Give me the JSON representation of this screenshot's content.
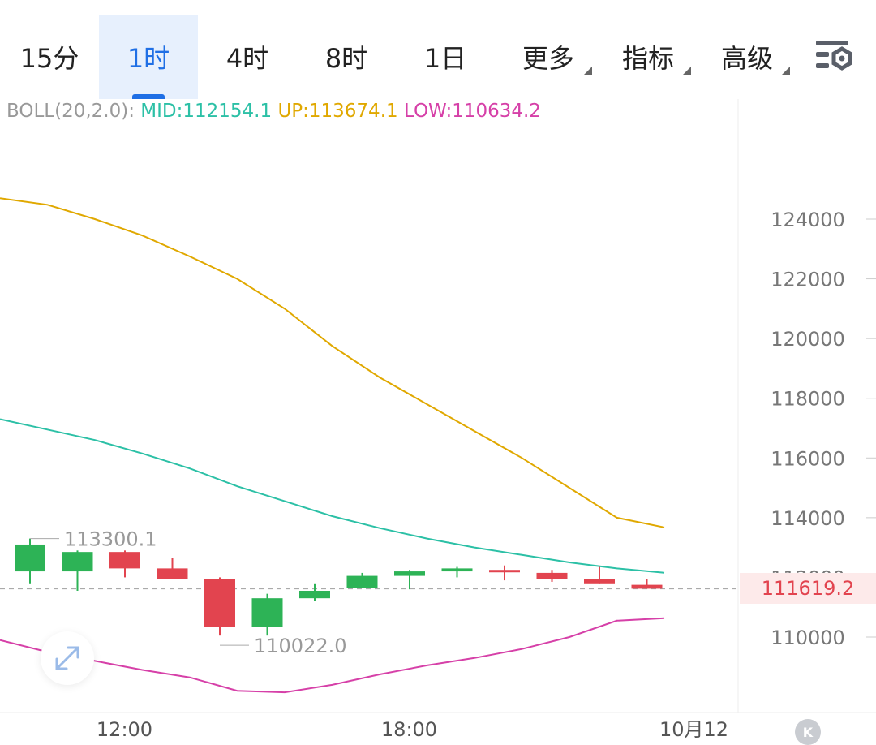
{
  "tabs": [
    {
      "label": "15分",
      "active": false,
      "has_caret": false
    },
    {
      "label": "1时",
      "active": true,
      "has_caret": false
    },
    {
      "label": "4时",
      "active": false,
      "has_caret": false
    },
    {
      "label": "8时",
      "active": false,
      "has_caret": false
    },
    {
      "label": "1日",
      "active": false,
      "has_caret": false
    },
    {
      "label": "更多",
      "active": false,
      "has_caret": true
    },
    {
      "label": "指标",
      "active": false,
      "has_caret": true
    },
    {
      "label": "高级",
      "active": false,
      "has_caret": true
    }
  ],
  "settings_icon": "chart-settings-icon",
  "boll": {
    "name": "BOLL(20,2.0):",
    "mid": "MID:112154.1",
    "up": "UP:113674.1",
    "low": "LOW:110634.2"
  },
  "colors": {
    "up_candle": "#2db356",
    "down_candle": "#e2444f",
    "mid_line": "#2cc0a6",
    "upper_line": "#e0a800",
    "lower_line": "#d640a8",
    "active_tab": "#1f6fe5"
  },
  "current_price": "111619.2",
  "expand_icon": "expand-arrows-icon",
  "logo_text": "K",
  "chart_data": {
    "type": "candlestick",
    "y_ticks": [
      124000,
      122000,
      120000,
      118000,
      116000,
      114000,
      112000,
      110000
    ],
    "y_tick_labels": [
      "124000",
      "122000",
      "120000",
      "118000",
      "116000",
      "114000",
      "112000",
      "110000"
    ],
    "x_labels": [
      {
        "label": "12:00",
        "candle_index": 1
      },
      {
        "label": "18:00",
        "candle_index": 7
      },
      {
        "label": "10月12",
        "candle_index": 13
      }
    ],
    "candles": [
      {
        "open": 112200,
        "close": 113100,
        "high": 113300,
        "low": 111800
      },
      {
        "open": 112200,
        "close": 112850,
        "high": 112900,
        "low": 111550
      },
      {
        "open": 112850,
        "close": 112300,
        "high": 112900,
        "low": 112000
      },
      {
        "open": 112300,
        "close": 111950,
        "high": 112650,
        "low": 111950
      },
      {
        "open": 111950,
        "close": 110350,
        "high": 112000,
        "low": 110050
      },
      {
        "open": 110350,
        "close": 111300,
        "high": 111450,
        "low": 110050
      },
      {
        "open": 111300,
        "close": 111550,
        "high": 111800,
        "low": 111200
      },
      {
        "open": 111650,
        "close": 112050,
        "high": 112150,
        "low": 111650
      },
      {
        "open": 112050,
        "close": 112200,
        "high": 112250,
        "low": 111600
      },
      {
        "open": 112200,
        "close": 112300,
        "high": 112350,
        "low": 112000
      },
      {
        "open": 112250,
        "close": 112200,
        "high": 112400,
        "low": 111900
      },
      {
        "open": 112150,
        "close": 111950,
        "high": 112250,
        "low": 111850
      },
      {
        "open": 111950,
        "close": 111800,
        "high": 112350,
        "low": 111800
      },
      {
        "open": 111750,
        "close": 111620,
        "high": 111950,
        "low": 111620
      }
    ],
    "boll_up": [
      124700,
      124480,
      124000,
      123450,
      122750,
      122000,
      121000,
      119750,
      118700,
      117800,
      116900,
      116000,
      115000,
      114000,
      113674
    ],
    "boll_mid": [
      117300,
      116950,
      116600,
      116150,
      115650,
      115050,
      114550,
      114050,
      113650,
      113300,
      113000,
      112750,
      112500,
      112300,
      112154
    ],
    "boll_low": [
      109900,
      109500,
      109200,
      108900,
      108650,
      108200,
      108150,
      108400,
      108750,
      109050,
      109300,
      109600,
      110000,
      110550,
      110634
    ],
    "max_label": "113300.1",
    "max_candle_index": 0,
    "min_label": "110022.0",
    "min_candle_index": 4,
    "current_price": 111619.2
  }
}
